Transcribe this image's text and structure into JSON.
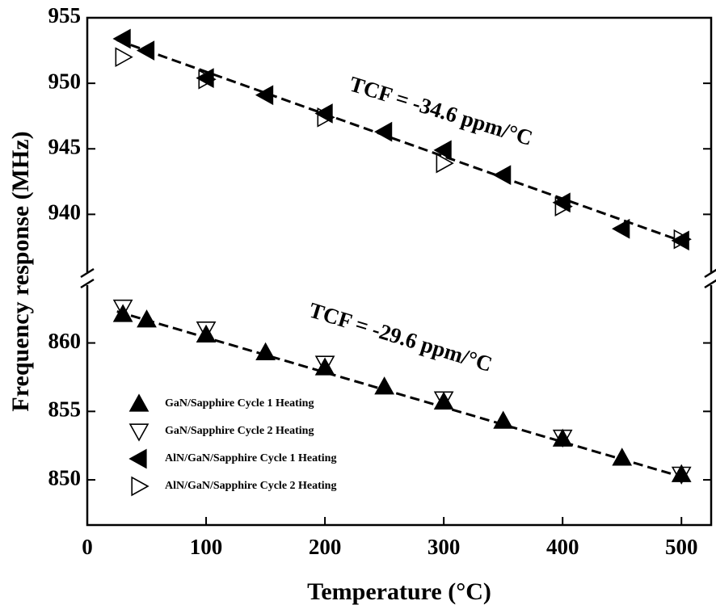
{
  "chart_data": [
    {
      "type": "scatter",
      "xlim": [
        0,
        525
      ],
      "ylim": [
        935.4,
        955
      ],
      "yticks": [
        940,
        945,
        950,
        955
      ],
      "y_label": "Frequency response (MHz)",
      "annotation": "TCF = -34.6 ppm/°C",
      "fit": {
        "x": [
          25,
          505
        ],
        "values": [
          953.3,
          937.8
        ]
      },
      "series": [
        {
          "name": "AlN/GaN/Sapphire Cycle 1 Heating",
          "color": "#000000",
          "marker": "triangle-left-filled",
          "x": [
            30,
            50,
            100,
            150,
            200,
            250,
            300,
            350,
            400,
            450,
            500
          ],
          "values": [
            953.4,
            952.5,
            950.4,
            949.1,
            947.7,
            946.3,
            944.9,
            943.0,
            940.9,
            938.9,
            938.0
          ]
        },
        {
          "name": "AlN/GaN/Sapphire Cycle 2 Heating",
          "color": "#000000",
          "marker": "triangle-right-open",
          "x": [
            30,
            100,
            200,
            300,
            400,
            500
          ],
          "values": [
            952.0,
            950.3,
            947.4,
            943.9,
            940.6,
            938.1
          ]
        }
      ]
    },
    {
      "type": "scatter",
      "xlim": [
        0,
        525
      ],
      "ylim": [
        846.7,
        864.4
      ],
      "yticks": [
        850,
        855,
        860
      ],
      "xticks": [
        0,
        100,
        200,
        300,
        400,
        500
      ],
      "x_label": "Temperature (°C)",
      "annotation": "TCF = -29.6 ppm/°C",
      "legend": "lower left",
      "fit": {
        "x": [
          25,
          505
        ],
        "values": [
          862.3,
          850.1
        ]
      },
      "series": [
        {
          "name": "GaN/Sapphire Cycle 1 Heating",
          "color": "#000000",
          "marker": "triangle-up-filled",
          "x": [
            30,
            50,
            100,
            150,
            200,
            250,
            300,
            350,
            400,
            450,
            500
          ],
          "values": [
            862.1,
            861.7,
            860.6,
            859.3,
            858.2,
            856.8,
            855.7,
            854.3,
            853.0,
            851.6,
            850.4
          ]
        },
        {
          "name": "GaN/Sapphire Cycle 2 Heating",
          "color": "#000000",
          "marker": "triangle-down-open",
          "x": [
            30,
            100,
            200,
            300,
            400,
            500
          ],
          "values": [
            862.6,
            861.0,
            858.5,
            855.9,
            853.1,
            850.4
          ]
        }
      ]
    }
  ]
}
